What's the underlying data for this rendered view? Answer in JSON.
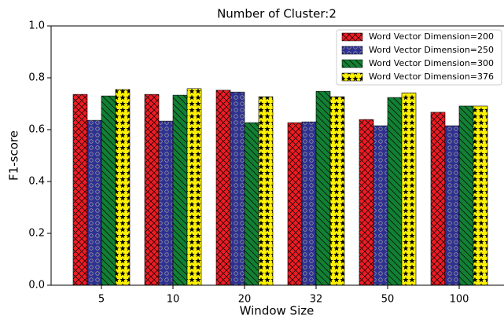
{
  "chart_data": {
    "type": "bar",
    "title": "Number of Cluster:2",
    "xlabel": "Window Size",
    "ylabel": "F1-score",
    "categories": [
      "5",
      "10",
      "20",
      "32",
      "50",
      "100"
    ],
    "series": [
      {
        "name": "Word Vector Dimension=200",
        "color": "#ee1c24",
        "values": [
          0.736,
          0.736,
          0.752,
          0.627,
          0.639,
          0.667
        ]
      },
      {
        "name": "Word Vector Dimension=250",
        "color": "#2e3192",
        "values": [
          0.636,
          0.633,
          0.745,
          0.63,
          0.615,
          0.615
        ]
      },
      {
        "name": "Word Vector Dimension=300",
        "color": "#128034",
        "values": [
          0.73,
          0.733,
          0.627,
          0.748,
          0.724,
          0.691
        ]
      },
      {
        "name": "Word Vector Dimension=376",
        "color": "#fff200",
        "values": [
          0.755,
          0.758,
          0.727,
          0.727,
          0.742,
          0.691
        ]
      }
    ],
    "ylim": [
      0,
      1.0
    ],
    "yticks": [
      {
        "value": 0,
        "label": "0.0"
      },
      {
        "value": 0.2,
        "label": "0.2"
      },
      {
        "value": 0.4,
        "label": "0.4"
      },
      {
        "value": 0.6,
        "label": "0.6"
      },
      {
        "value": 0.8,
        "label": "0.8"
      },
      {
        "value": 1.0,
        "label": "1.0"
      }
    ],
    "legend": "upper right"
  }
}
